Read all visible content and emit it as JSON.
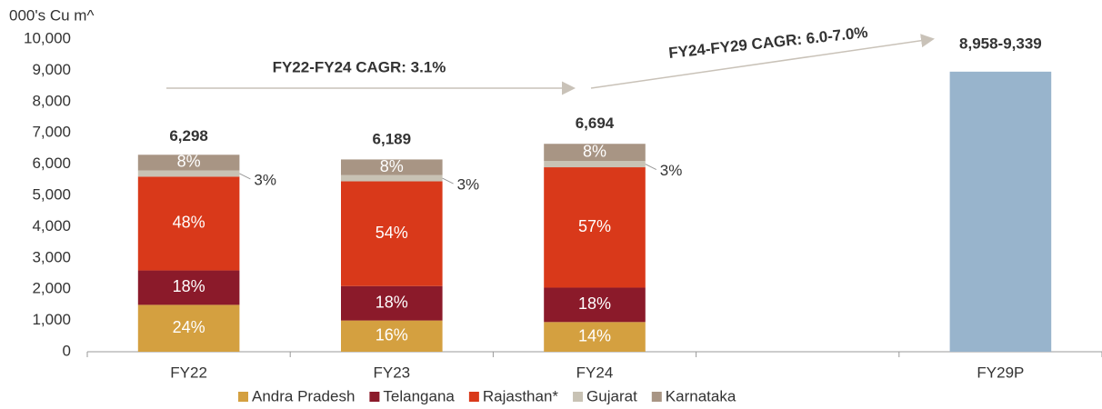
{
  "chart_data": {
    "type": "stacked_bar",
    "y_label": "000's Cu m^",
    "categories": [
      "FY22",
      "FY23",
      "FY24",
      null,
      "FY29P"
    ],
    "series": [
      {
        "name": "Andra Pradesh",
        "color": "#d4a040",
        "values": [
          1500,
          1000,
          950,
          null,
          null
        ],
        "labels": [
          "24%",
          "16%",
          "14%",
          null,
          null
        ]
      },
      {
        "name": "Telangana",
        "color": "#8b1a2a",
        "values": [
          1100,
          1100,
          1100,
          null,
          null
        ],
        "labels": [
          "18%",
          "18%",
          "18%",
          null,
          null
        ]
      },
      {
        "name": "Rajasthan*",
        "color": "#d9391a",
        "values": [
          3000,
          3350,
          3850,
          null,
          null
        ],
        "labels": [
          "48%",
          "54%",
          "57%",
          null,
          null
        ]
      },
      {
        "name": "Gujarat",
        "color": "#c8c2b4",
        "values": [
          200,
          200,
          200,
          null,
          null
        ],
        "labels": [
          "3%",
          "3%",
          "3%",
          null,
          null
        ],
        "label_outside": true
      },
      {
        "name": "Karnataka",
        "color": "#a89584",
        "values": [
          500,
          500,
          550,
          null,
          null
        ],
        "labels": [
          "8%",
          "8%",
          "8%",
          null,
          null
        ]
      },
      {
        "color": "#98b4cc",
        "values": [
          null,
          null,
          null,
          null,
          8958
        ],
        "value_labels": [
          null,
          null,
          null,
          null,
          "8,958-9,339"
        ]
      }
    ],
    "totals": [
      6298,
      6189,
      6694,
      null,
      null
    ],
    "total_labels": [
      "6,298",
      "6,189",
      "6,694",
      null,
      null
    ],
    "annotations": [
      "FY22-FY24 CAGR: 3.1%",
      "FY24-FY29 CAGR: 6.0-7.0%"
    ],
    "ylim": [
      0,
      10000
    ],
    "yticks": [
      0,
      {
        "value": 1000,
        "label": "1,000"
      },
      {
        "value": 2000,
        "label": "2,000"
      },
      {
        "value": 3000,
        "label": "3,000"
      },
      {
        "value": 4000,
        "label": "4,000"
      },
      {
        "value": 5000,
        "label": "5,000"
      },
      {
        "value": 6000,
        "label": "6,000"
      },
      {
        "value": 7000,
        "label": "7,000"
      },
      {
        "value": 8000,
        "label": "8,000"
      },
      {
        "value": 9000,
        "label": "9,000"
      },
      {
        "value": 10000,
        "label": "10,000"
      }
    ],
    "grid": false,
    "legend": "bottom"
  }
}
